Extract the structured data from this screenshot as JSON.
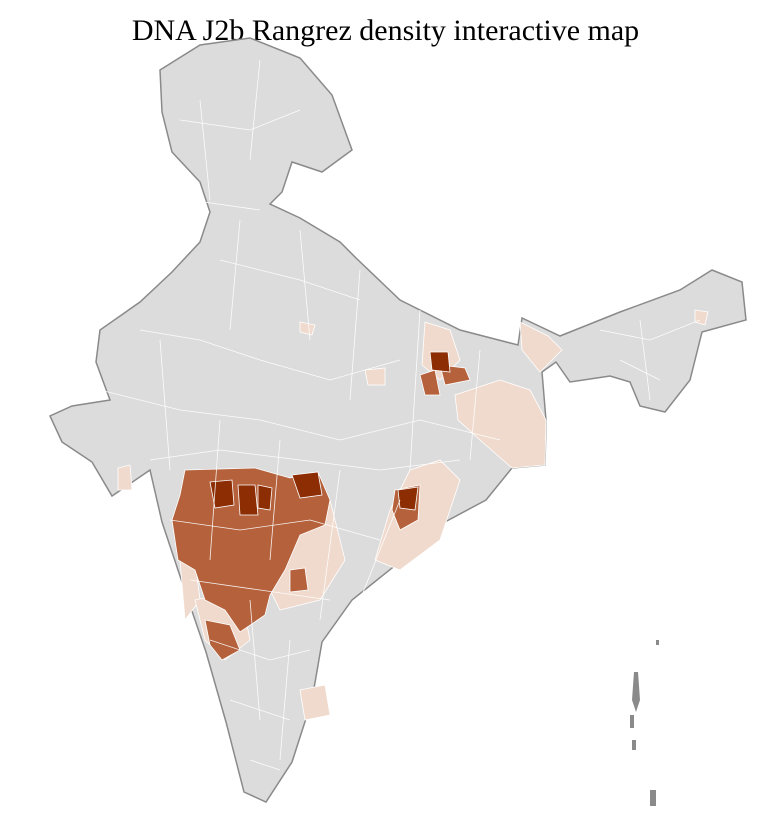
{
  "title": "DNA J2b Rangrez density interactive map",
  "colors": {
    "no_data": "#dcdcdc",
    "low": "#f0dacd",
    "medium": "#b4613c",
    "high": "#8c2d04",
    "state_border": "#8a8a8a",
    "district_border": "#ffffff"
  }
}
